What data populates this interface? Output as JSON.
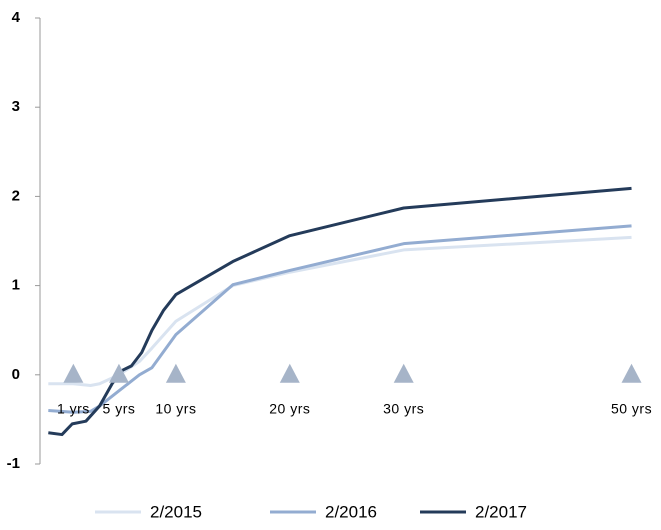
{
  "chart_data": {
    "type": "line",
    "xlim": [
      -1.93,
      52.5
    ],
    "xticks": [
      {
        "value": 1,
        "label": "1 yrs"
      },
      {
        "value": 5,
        "label": "5 yrs"
      },
      {
        "value": 10,
        "label": "10 yrs"
      },
      {
        "value": 20,
        "label": "20 yrs"
      },
      {
        "value": 30,
        "label": "30 yrs"
      },
      {
        "value": 50,
        "label": "50 yrs"
      }
    ],
    "ylim": [
      -1,
      4
    ],
    "yticks": [
      -1,
      0,
      1,
      2,
      3,
      4
    ],
    "marker_color": "#a6b4c8",
    "legend": "bottom",
    "series": [
      {
        "name": "2/2015",
        "color": "#d9e3f0",
        "x": [
          -1.2,
          1,
          2.5,
          3.3,
          5,
          6.8,
          7.9,
          10,
          15,
          20,
          30,
          50
        ],
        "values": [
          -0.1,
          -0.1,
          -0.12,
          -0.1,
          0.0,
          0.15,
          0.3,
          0.6,
          1.0,
          1.15,
          1.4,
          1.54
        ]
      },
      {
        "name": "2/2016",
        "color": "#93acd1",
        "x": [
          -1.2,
          1,
          2.5,
          3.3,
          5,
          6.8,
          7.9,
          10,
          15,
          20,
          30,
          50
        ],
        "values": [
          -0.4,
          -0.42,
          -0.41,
          -0.35,
          -0.18,
          0.0,
          0.08,
          0.45,
          1.01,
          1.17,
          1.47,
          1.67
        ]
      },
      {
        "name": "2/2017",
        "color": "#243b5a",
        "x": [
          -1.2,
          0,
          0.9,
          2.1,
          3.3,
          4.4,
          5.3,
          6.1,
          7,
          7.9,
          8.9,
          10,
          15,
          20,
          30,
          50
        ],
        "values": [
          -0.65,
          -0.67,
          -0.55,
          -0.52,
          -0.35,
          -0.1,
          0.05,
          0.1,
          0.25,
          0.5,
          0.72,
          0.9,
          1.27,
          1.56,
          1.87,
          2.09
        ]
      }
    ]
  }
}
